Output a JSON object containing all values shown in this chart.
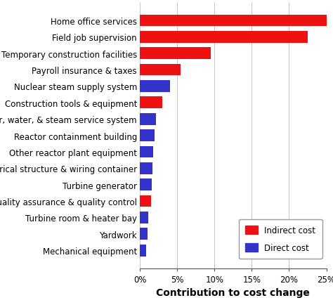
{
  "categories": [
    "Home office services",
    "Field job supervision",
    "Temporary construction facilities",
    "Payroll insurance & taxes",
    "Nuclear steam supply system",
    "Construction tools & equipment",
    "Air, water, & steam service system",
    "Reactor containment building",
    "Other reactor plant equipment",
    "Electrical structure & wiring container",
    "Turbine generator",
    "Field quality assurance & quality control",
    "Turbine room & heater bay",
    "Yardwork",
    "Mechanical equipment"
  ],
  "indirect_cost": [
    25.0,
    22.5,
    9.5,
    5.5,
    0.0,
    3.0,
    0.0,
    0.0,
    0.0,
    0.0,
    0.0,
    1.5,
    0.0,
    0.0,
    0.0
  ],
  "direct_cost": [
    0.0,
    0.0,
    0.0,
    0.0,
    4.0,
    0.0,
    2.2,
    2.0,
    1.8,
    1.7,
    1.6,
    0.0,
    1.1,
    1.0,
    0.8
  ],
  "indirect_color": "#ee1111",
  "direct_color": "#3333cc",
  "xlabel": "Contribution to cost change",
  "xlim": [
    0,
    25
  ],
  "xtick_labels": [
    "0%",
    "5%",
    "10%",
    "15%",
    "20%",
    "25%"
  ],
  "xtick_values": [
    0,
    5,
    10,
    15,
    20,
    25
  ],
  "legend_indirect": "Indirect cost",
  "legend_direct": "Direct cost",
  "bar_height": 0.72,
  "background_color": "#ffffff",
  "tick_fontsize": 8.5,
  "xlabel_fontsize": 10
}
